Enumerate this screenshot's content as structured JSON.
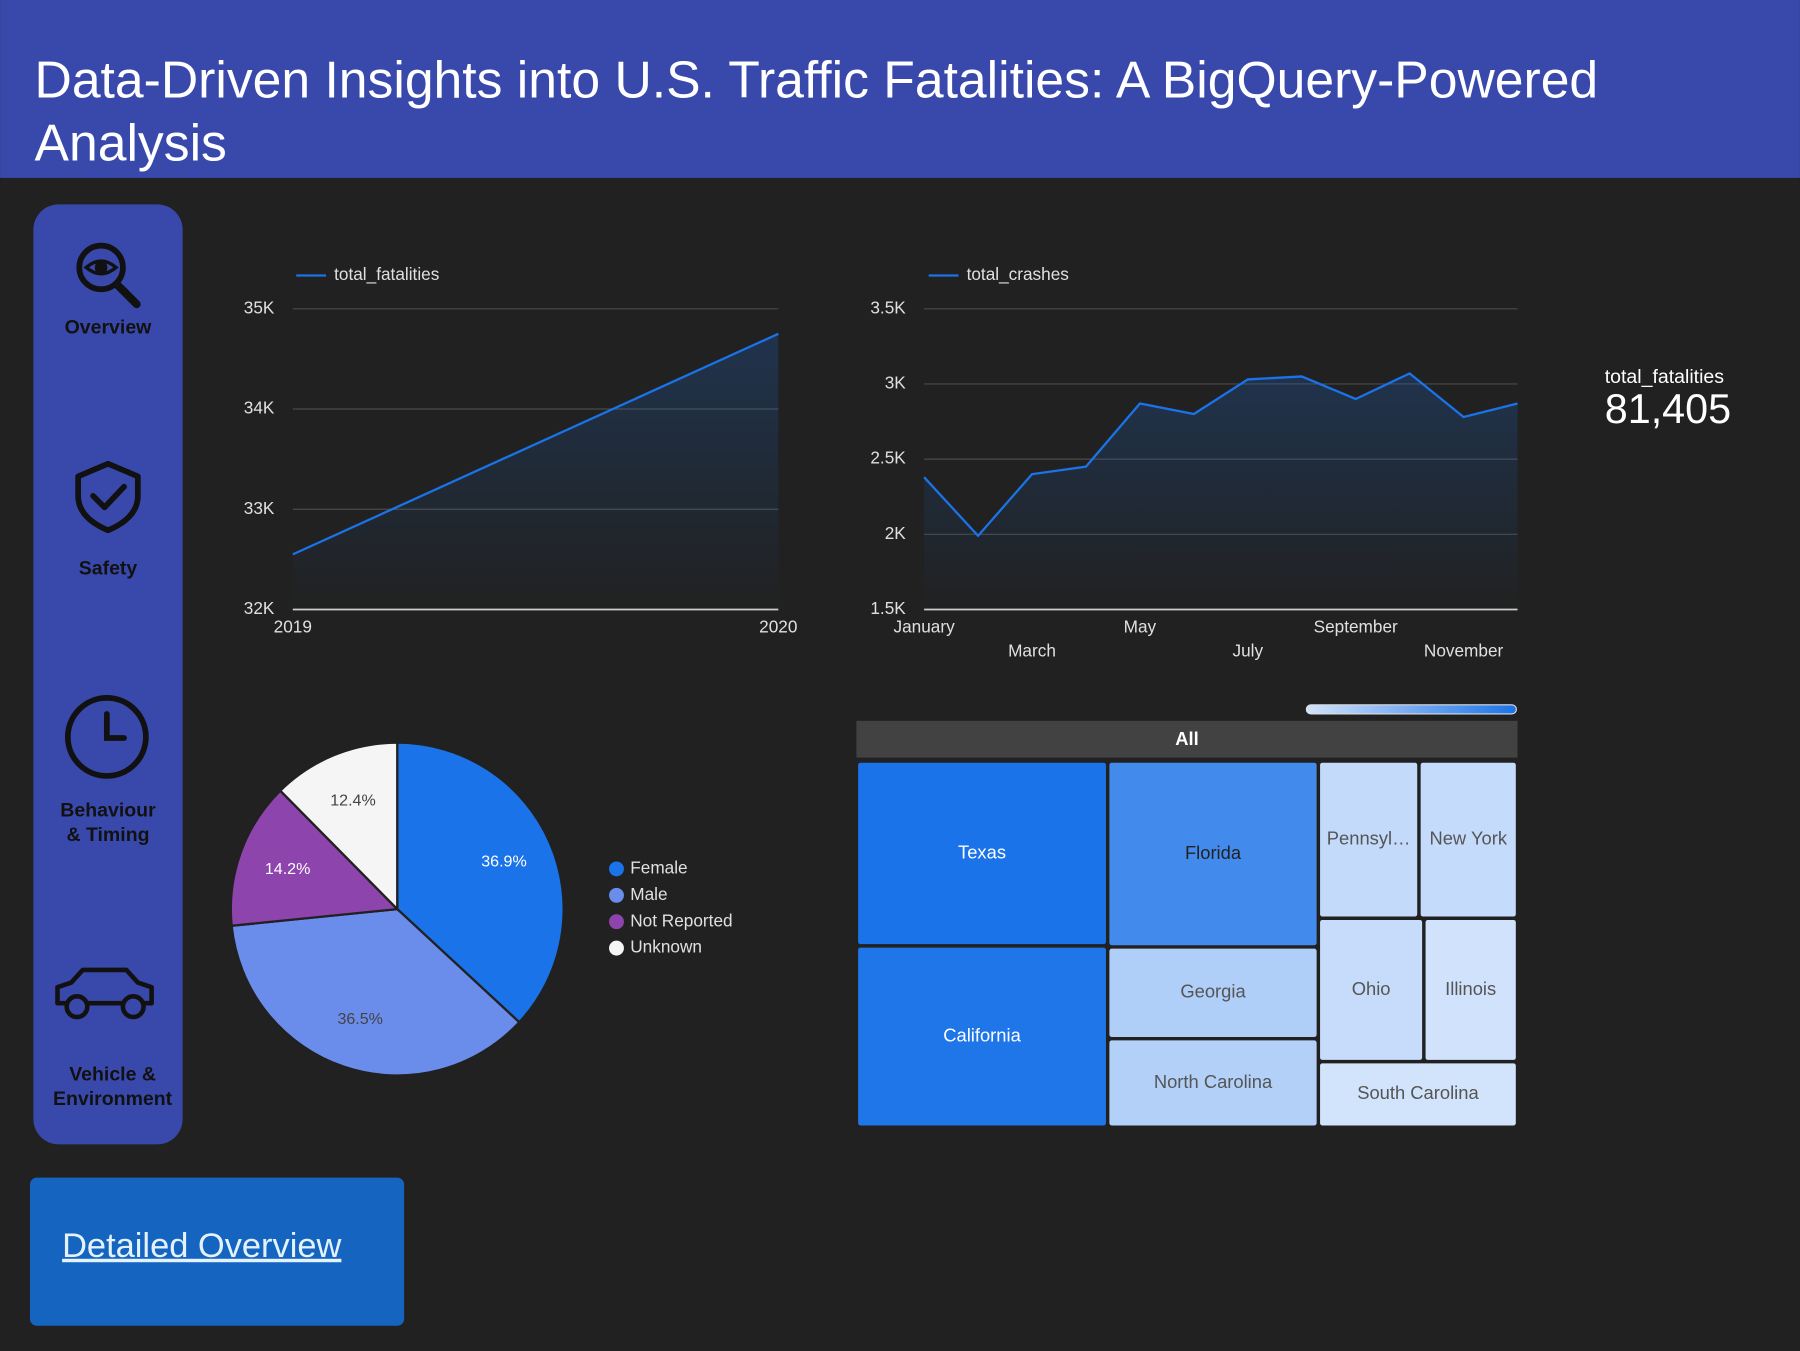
{
  "header": {
    "title": "Data-Driven Insights into U.S. Traffic Fatalities: A BigQuery-Powered Analysis"
  },
  "nav": [
    {
      "lines": [
        "Overview"
      ]
    },
    {
      "lines": [
        "Safety"
      ]
    },
    {
      "lines": [
        "Behaviour",
        "& Timing"
      ]
    },
    {
      "lines": [
        "Vehicle &",
        "Environment"
      ]
    }
  ],
  "button": {
    "label": "Detailed Overview"
  },
  "scorecard": {
    "label": "total_fatalities",
    "value": "81,405"
  },
  "chart_data": [
    {
      "type": "line",
      "categories": [
        "2019",
        "2020"
      ],
      "series": [
        {
          "name": "total_fatalities",
          "color": "#1a73e8",
          "values": [
            32550,
            34750
          ]
        }
      ],
      "ylim": [
        32000,
        35000
      ],
      "yticks": [
        {
          "value": 32000,
          "label": "32K"
        },
        {
          "value": 33000,
          "label": "33K"
        },
        {
          "value": 34000,
          "label": "34K"
        },
        {
          "value": 35000,
          "label": "35K"
        }
      ],
      "grid": true
    },
    {
      "type": "line",
      "categories": [
        "January",
        null,
        "March",
        null,
        "May",
        null,
        "July",
        null,
        "September",
        null,
        "November",
        null
      ],
      "series": [
        {
          "name": "total_crashes",
          "color": "#1a73e8",
          "values": [
            2380,
            1990,
            2400,
            2450,
            2870,
            2800,
            3030,
            3050,
            2900,
            3070,
            2780,
            2870
          ]
        }
      ],
      "ylim": [
        1500,
        3500
      ],
      "yticks": [
        {
          "value": 1500,
          "label": "1.5K"
        },
        {
          "value": 2000,
          "label": "2K"
        },
        {
          "value": 2500,
          "label": "2.5K"
        },
        {
          "value": 3000,
          "label": "3K"
        },
        {
          "value": 3500,
          "label": "3.5K"
        }
      ],
      "grid": true
    },
    {
      "type": "pie",
      "categories": [
        "Female",
        "Male",
        "Not Reported",
        "Unknown"
      ],
      "values": [
        36.9,
        36.5,
        14.2,
        12.4
      ],
      "value_labels": [
        "36.9%",
        "36.5%",
        "14.2%",
        "12.4%"
      ],
      "colors": [
        "#1a73e8",
        "#6a8ceb",
        "#8e44ad",
        "#f5f5f5"
      ]
    },
    {
      "type": "treemap",
      "root_label": "All",
      "categories": [
        "Texas",
        "California",
        "Florida",
        "Georgia",
        "North Carolina",
        "Pennsyl…",
        "New York",
        "Ohio",
        "Illinois",
        "South Carolina"
      ],
      "values": [
        7400,
        7260,
        6240,
        3080,
        2970,
        2520,
        2470,
        2410,
        2140,
        2080
      ],
      "color_range": [
        "#d2e3fc",
        "#1a73e8"
      ]
    }
  ]
}
